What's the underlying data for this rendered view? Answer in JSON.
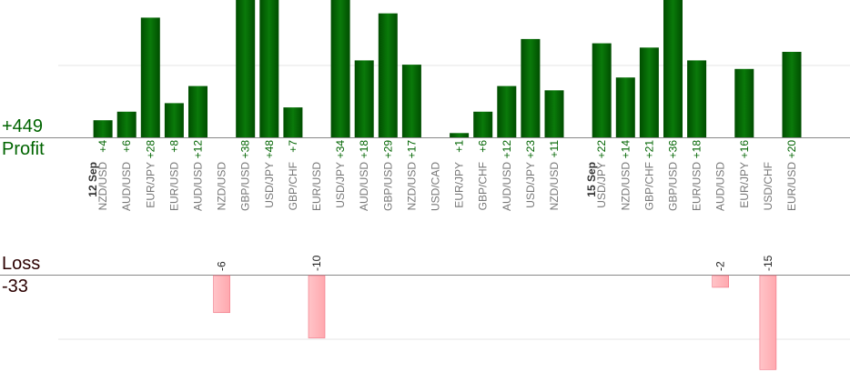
{
  "summary": {
    "profit_total": "+449",
    "profit_label": "Profit",
    "loss_label": "Loss",
    "loss_total": "-33"
  },
  "colors": {
    "profit_bar_dark": "#004d00",
    "profit_bar_light": "#0a7a0a",
    "profit_text": "#006400",
    "loss_bar": "#ffb3b8",
    "loss_bar_border": "#f07080",
    "loss_text": "#222222",
    "pair_text": "#777777",
    "date_text": "#333333",
    "axis": "#888888",
    "grid": "#e6e6e6"
  },
  "chart_data": {
    "type": "bar",
    "profit_axis_max_visible": 60,
    "loss_axis_min_visible": -15,
    "gridlines": {
      "profit": [
        30
      ],
      "loss": [
        -10
      ]
    },
    "columns": [
      {
        "kind": "date",
        "label": "12 Sep"
      },
      {
        "kind": "trade",
        "pair": "NZD/USD",
        "value": 4
      },
      {
        "kind": "trade",
        "pair": "AUD/USD",
        "value": 6
      },
      {
        "kind": "trade",
        "pair": "EUR/JPY",
        "value": 28
      },
      {
        "kind": "trade",
        "pair": "EUR/USD",
        "value": 8
      },
      {
        "kind": "trade",
        "pair": "AUD/USD",
        "value": 12
      },
      {
        "kind": "trade",
        "pair": "NZD/USD",
        "value": -6
      },
      {
        "kind": "trade",
        "pair": "GBP/USD",
        "value": 38
      },
      {
        "kind": "trade",
        "pair": "USD/JPY",
        "value": 48
      },
      {
        "kind": "trade",
        "pair": "GBP/CHF",
        "value": 7
      },
      {
        "kind": "trade",
        "pair": "EUR/USD",
        "value": -10
      },
      {
        "kind": "trade",
        "pair": "USD/JPY",
        "value": 34
      },
      {
        "kind": "trade",
        "pair": "AUD/USD",
        "value": 18
      },
      {
        "kind": "trade",
        "pair": "GBP/USD",
        "value": 29
      },
      {
        "kind": "trade",
        "pair": "NZD/USD",
        "value": 17
      },
      {
        "kind": "trade",
        "pair": "USD/CAD",
        "value": 0
      },
      {
        "kind": "trade",
        "pair": "EUR/JPY",
        "value": 1
      },
      {
        "kind": "trade",
        "pair": "GBP/CHF",
        "value": 6
      },
      {
        "kind": "trade",
        "pair": "AUD/USD",
        "value": 12
      },
      {
        "kind": "trade",
        "pair": "USD/JPY",
        "value": 23
      },
      {
        "kind": "trade",
        "pair": "NZD/USD",
        "value": 11
      },
      {
        "kind": "date",
        "label": "15 Sep"
      },
      {
        "kind": "trade",
        "pair": "USD/JPY",
        "value": 22
      },
      {
        "kind": "trade",
        "pair": "NZD/USD",
        "value": 14
      },
      {
        "kind": "trade",
        "pair": "GBP/CHF",
        "value": 21
      },
      {
        "kind": "trade",
        "pair": "GBP/USD",
        "value": 36
      },
      {
        "kind": "trade",
        "pair": "EUR/USD",
        "value": 18
      },
      {
        "kind": "trade",
        "pair": "AUD/USD",
        "value": -2
      },
      {
        "kind": "trade",
        "pair": "EUR/JPY",
        "value": 16
      },
      {
        "kind": "trade",
        "pair": "USD/CHF",
        "value": -15
      },
      {
        "kind": "trade",
        "pair": "EUR/USD",
        "value": 20
      }
    ],
    "value_labels": [
      "+4",
      "+6",
      "+28",
      "+8",
      "+12",
      "-6",
      "+38",
      "+48",
      "+7",
      "-10",
      "+34",
      "+18",
      "+29",
      "+17",
      "",
      "+1",
      "+6",
      "+12",
      "+23",
      "+11",
      "+22",
      "+14",
      "+21",
      "+36",
      "+18",
      "-2",
      "+16",
      "-15",
      "+20"
    ]
  }
}
